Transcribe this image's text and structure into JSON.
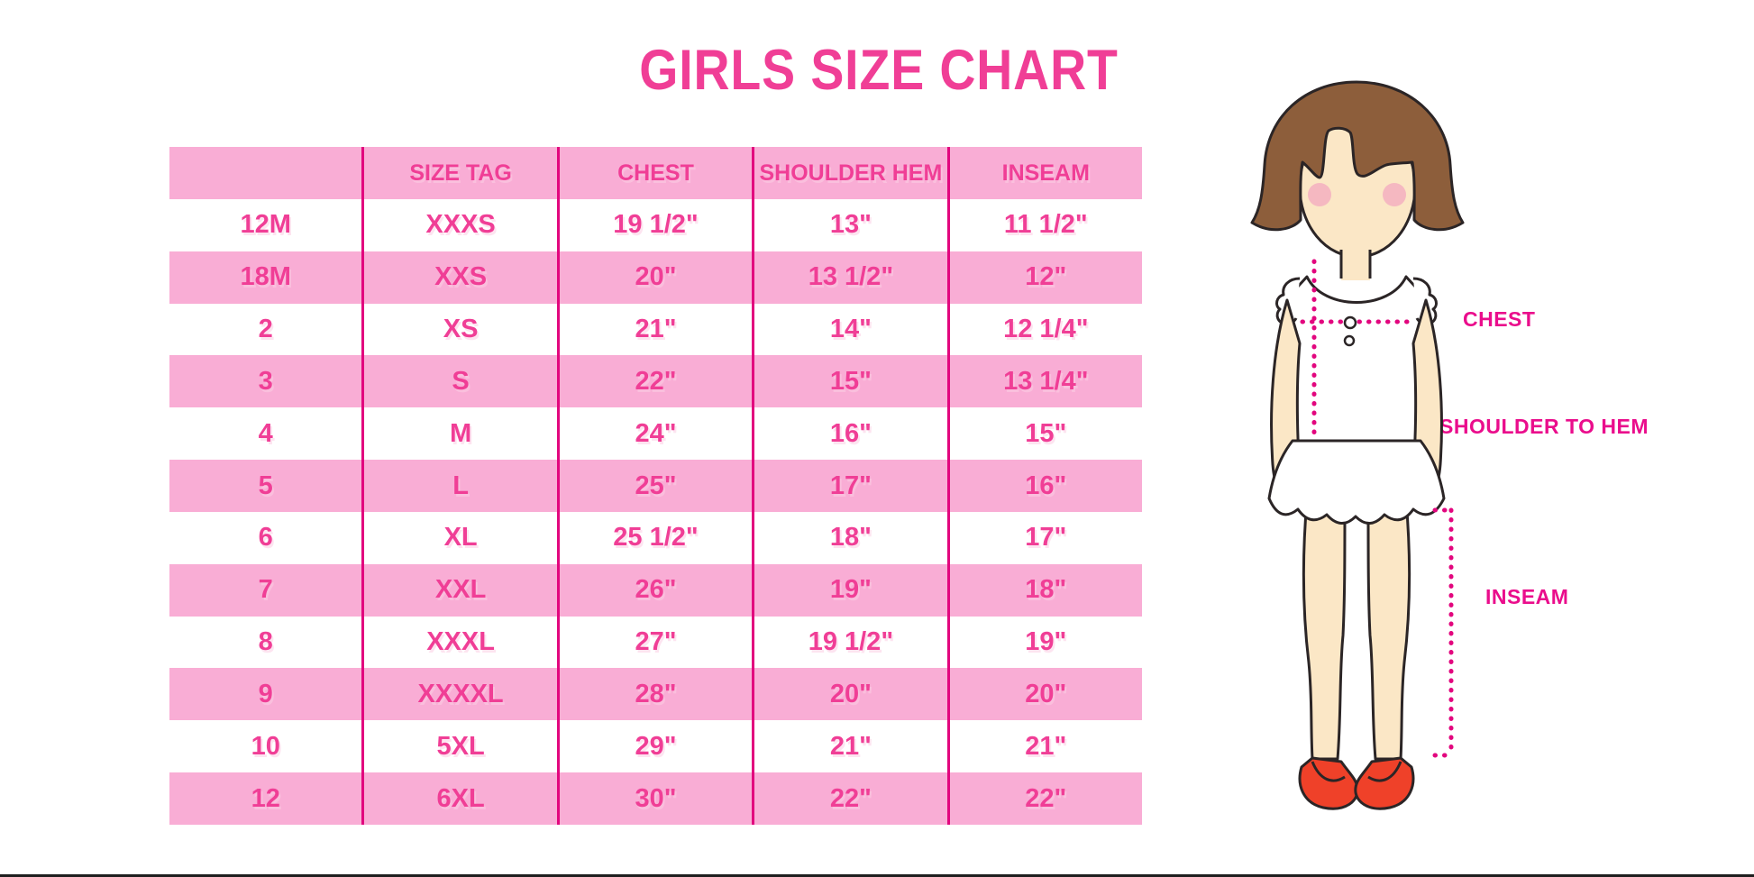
{
  "title": "GIRLS SIZE CHART",
  "chart_data": {
    "type": "table",
    "title": "GIRLS SIZE CHART",
    "columns": [
      "",
      "SIZE TAG",
      "CHEST",
      "SHOULDER HEM",
      "INSEAM"
    ],
    "rows": [
      [
        "12M",
        "XXXS",
        "19 1/2\"",
        "13\"",
        "11 1/2\""
      ],
      [
        "18M",
        "XXS",
        "20\"",
        "13 1/2\"",
        "12\""
      ],
      [
        "2",
        "XS",
        "21\"",
        "14\"",
        "12 1/4\""
      ],
      [
        "3",
        "S",
        "22\"",
        "15\"",
        "13 1/4\""
      ],
      [
        "4",
        "M",
        "24\"",
        "16\"",
        "15\""
      ],
      [
        "5",
        "L",
        "25\"",
        "17\"",
        "16\""
      ],
      [
        "6",
        "XL",
        "25 1/2\"",
        "18\"",
        "17\""
      ],
      [
        "7",
        "XXL",
        "26\"",
        "19\"",
        "18\""
      ],
      [
        "8",
        "XXXL",
        "27\"",
        "19 1/2\"",
        "19\""
      ],
      [
        "9",
        "XXXXL",
        "28\"",
        "20\"",
        "20\""
      ],
      [
        "10",
        "5XL",
        "29\"",
        "21\"",
        "21\""
      ],
      [
        "12",
        "6XL",
        "30\"",
        "22\"",
        "22\""
      ]
    ],
    "units": "inches",
    "legend_position": "none",
    "grid": "vertical-dividers-only"
  },
  "diagram": {
    "labels": {
      "chest": "CHEST",
      "shoulder_to_hem": "SHOULDER TO HEM",
      "inseam": "INSEAM"
    }
  },
  "colors": {
    "text_pink": "#F03E96",
    "row_pink": "#F9ADD5",
    "divider": "#E2067E",
    "label_magenta": "#EA0D8C",
    "hair_brown": "#8D5E3B",
    "skin": "#FBE7C6",
    "blush": "#F3AFC0",
    "shoe_red": "#EF4129",
    "outline": "#2B2526"
  }
}
